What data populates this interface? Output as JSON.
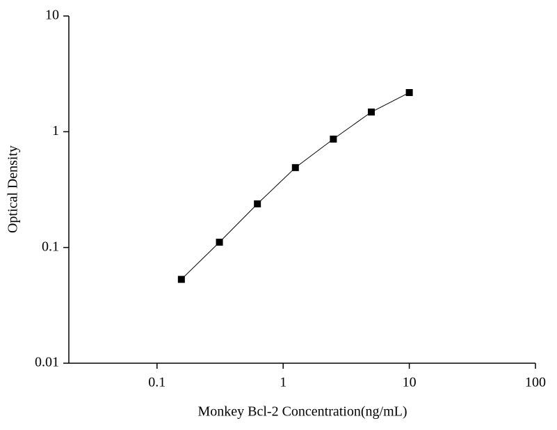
{
  "chart_data": {
    "type": "line",
    "x_label": "Monkey Bcl-2 Concentration(ng/mL)",
    "y_label": "Optical Density",
    "x": [
      0.156,
      0.3125,
      0.625,
      1.25,
      2.5,
      5,
      10
    ],
    "series": [
      {
        "color": "#000000",
        "values": [
          0.053,
          0.111,
          0.238,
          0.49,
          0.864,
          1.48,
          2.18
        ]
      }
    ],
    "xlim": [
      0.02,
      100
    ],
    "ylim": [
      0.01,
      10
    ],
    "xticks": [
      0.1,
      1,
      10,
      100
    ],
    "yticks": [
      0.01,
      0.1,
      1,
      10
    ],
    "log_x": true,
    "log_y": true,
    "grid": false
  }
}
